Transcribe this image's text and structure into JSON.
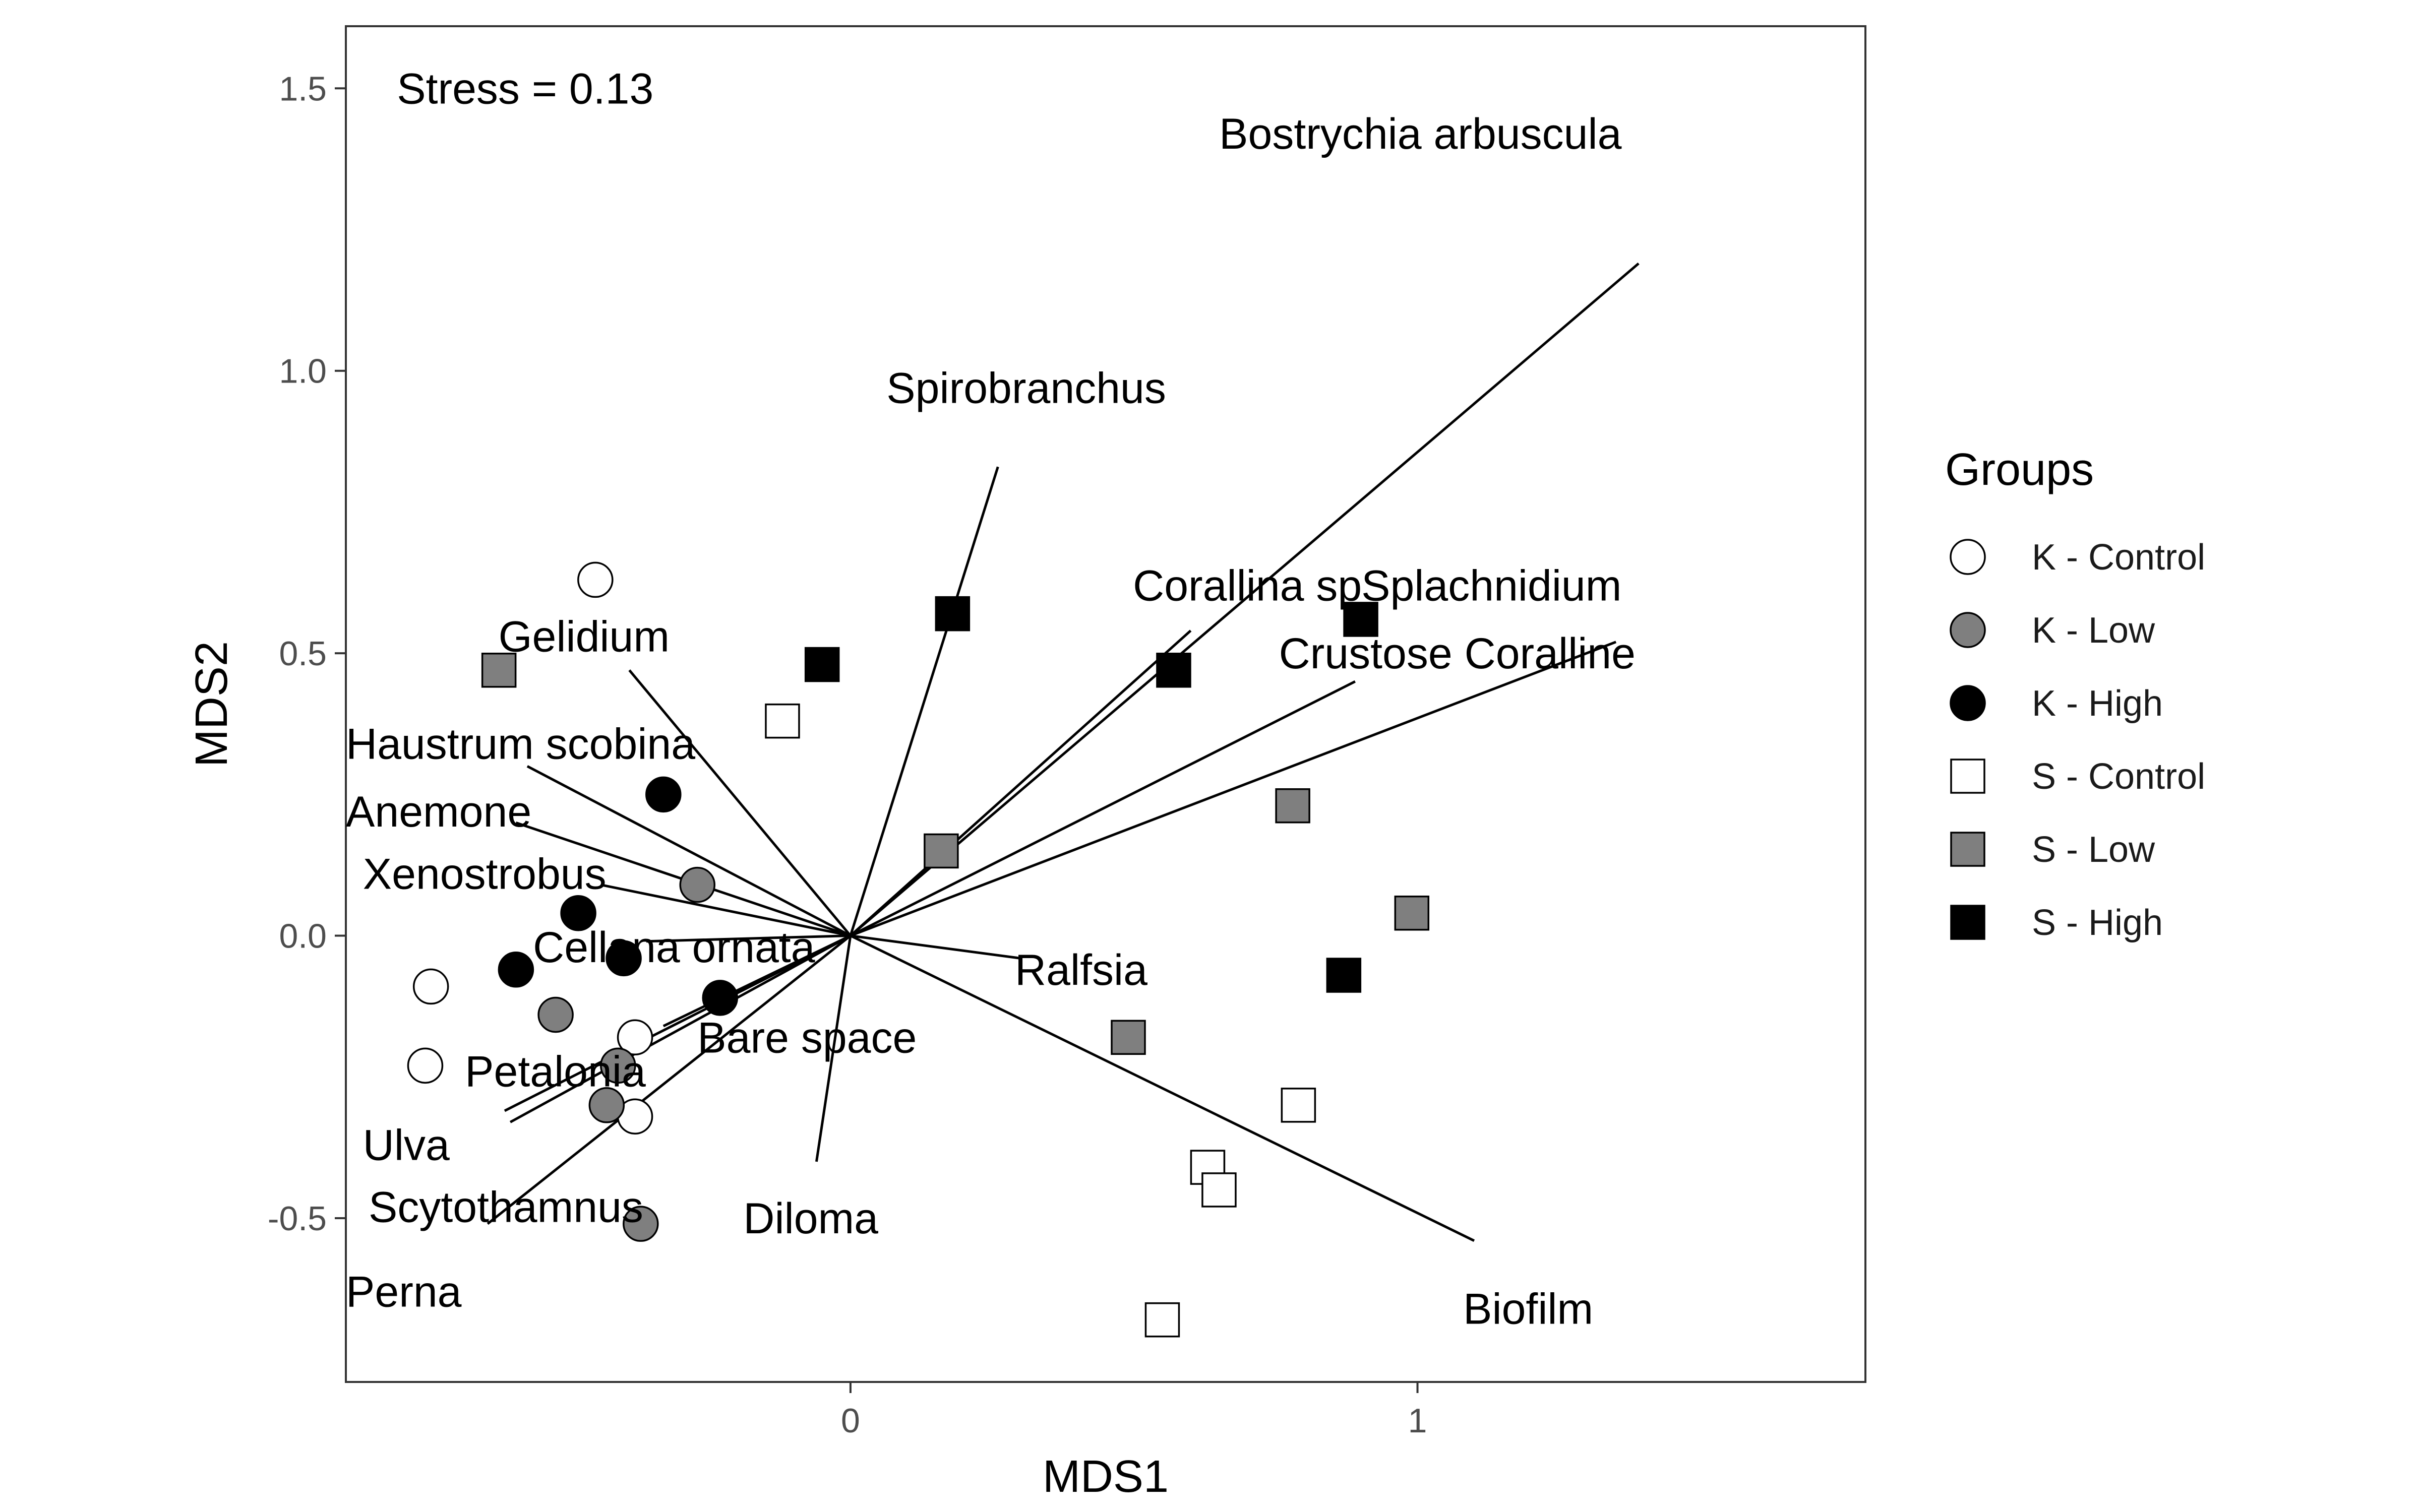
{
  "chart_data": {
    "type": "scatter",
    "xlabel": "MDS1",
    "ylabel": "MDS2",
    "xlim": [
      -0.89,
      1.79
    ],
    "ylim": [
      -0.79,
      1.61
    ],
    "x_ticks": [
      {
        "value": 0,
        "label": "0"
      },
      {
        "value": 1,
        "label": "1"
      }
    ],
    "y_ticks": [
      {
        "value": -0.5,
        "label": "-0.5"
      },
      {
        "value": 0.0,
        "label": "0.0"
      },
      {
        "value": 0.5,
        "label": "0.5"
      },
      {
        "value": 1.0,
        "label": "1.0"
      },
      {
        "value": 1.5,
        "label": "1.5"
      }
    ],
    "grid": false,
    "stress_text": "Stress = 0.13",
    "legend": {
      "title": "Groups",
      "position": "right",
      "entries": [
        {
          "label": "K - Control",
          "shape": "circle",
          "fill": "#ffffff"
        },
        {
          "label": "K - Low",
          "shape": "circle",
          "fill": "#7f7f7f"
        },
        {
          "label": "K - High",
          "shape": "circle",
          "fill": "#000000"
        },
        {
          "label": "S - Control",
          "shape": "square",
          "fill": "#ffffff"
        },
        {
          "label": "S - Low",
          "shape": "square",
          "fill": "#7f7f7f"
        },
        {
          "label": "S - High",
          "shape": "square",
          "fill": "#000000"
        }
      ]
    },
    "series": [
      {
        "name": "K - Control",
        "points": [
          [
            -0.45,
            0.63
          ],
          [
            -0.74,
            -0.09
          ],
          [
            -0.75,
            -0.23
          ],
          [
            -0.38,
            -0.18
          ],
          [
            -0.38,
            -0.32
          ]
        ]
      },
      {
        "name": "K - Low",
        "points": [
          [
            -0.27,
            0.09
          ],
          [
            -0.52,
            -0.14
          ],
          [
            -0.41,
            -0.23
          ],
          [
            -0.43,
            -0.3
          ],
          [
            -0.37,
            -0.51
          ]
        ]
      },
      {
        "name": "K - High",
        "points": [
          [
            -0.33,
            0.25
          ],
          [
            -0.48,
            0.04
          ],
          [
            -0.4,
            -0.04
          ],
          [
            -0.59,
            -0.06
          ],
          [
            -0.23,
            -0.11
          ]
        ]
      },
      {
        "name": "S - Control",
        "points": [
          [
            -0.12,
            0.38
          ],
          [
            0.79,
            -0.3
          ],
          [
            0.63,
            -0.41
          ],
          [
            0.65,
            -0.45
          ],
          [
            0.55,
            -0.68
          ]
        ]
      },
      {
        "name": "S - Low",
        "points": [
          [
            -0.62,
            0.47
          ],
          [
            0.16,
            0.15
          ],
          [
            0.78,
            0.23
          ],
          [
            0.99,
            0.04
          ],
          [
            0.49,
            -0.18
          ]
        ]
      },
      {
        "name": "S - High",
        "points": [
          [
            0.18,
            0.57
          ],
          [
            -0.05,
            0.48
          ],
          [
            0.57,
            0.47
          ],
          [
            0.9,
            0.56
          ],
          [
            0.87,
            -0.07
          ]
        ]
      }
    ],
    "vectors": [
      {
        "name": "Bostrychia arbuscula",
        "end": [
          1.39,
          1.19
        ],
        "label_at": [
          1.36,
          1.42
        ],
        "anchor": "end"
      },
      {
        "name": "Spirobranchus",
        "end": [
          0.26,
          0.83
        ],
        "label_at": [
          0.31,
          0.97
        ],
        "anchor": "middle"
      },
      {
        "name": "Corallina sp",
        "end": [
          0.6,
          0.54
        ],
        "label_at": [
          0.7,
          0.62
        ],
        "anchor": "middle"
      },
      {
        "name": "Splachnidium",
        "end": [
          1.35,
          0.52
        ],
        "label_at": [
          1.36,
          0.62
        ],
        "anchor": "end"
      },
      {
        "name": "Crustose Coralline",
        "end": [
          0.89,
          0.45
        ],
        "label_at": [
          1.07,
          0.5
        ],
        "anchor": "middle"
      },
      {
        "name": "Gelidium",
        "end": [
          -0.39,
          0.47
        ],
        "label_at": [
          -0.47,
          0.53
        ],
        "anchor": "middle"
      },
      {
        "name": "Haustrum scobina",
        "end": [
          -0.57,
          0.3
        ],
        "label_at": [
          -0.89,
          0.34
        ],
        "anchor": "start"
      },
      {
        "name": "Anemone",
        "end": [
          -0.59,
          0.2
        ],
        "label_at": [
          -0.89,
          0.22
        ],
        "anchor": "start"
      },
      {
        "name": "Xenostrobus",
        "end": [
          -0.44,
          0.09
        ],
        "label_at": [
          -0.86,
          0.11
        ],
        "anchor": "start"
      },
      {
        "name": "Cellana ornata",
        "end": [
          -0.36,
          -0.01
        ],
        "label_at": [
          -0.56,
          -0.02
        ],
        "anchor": "start"
      },
      {
        "name": "Ralfsia",
        "end": [
          0.3,
          -0.04
        ],
        "label_at": [
          0.29,
          -0.06
        ],
        "anchor": "start"
      },
      {
        "name": "Bare space",
        "end": [
          -0.33,
          -0.16
        ],
        "label_at": [
          -0.27,
          -0.18
        ],
        "anchor": "start"
      },
      {
        "name": "Petalonia",
        "end": [
          -0.61,
          -0.31
        ],
        "label_at": [
          -0.68,
          -0.24
        ],
        "anchor": "start"
      },
      {
        "name": "Ulva",
        "end": [
          -0.6,
          -0.33
        ],
        "label_at": [
          -0.86,
          -0.37
        ],
        "anchor": "start"
      },
      {
        "name": "Scytothamnus",
        "end": [
          -0.64,
          -0.51
        ],
        "label_at": [
          -0.85,
          -0.48
        ],
        "anchor": "start"
      },
      {
        "name": "Diloma",
        "end": [
          -0.06,
          -0.4
        ],
        "label_at": [
          -0.07,
          -0.5
        ],
        "anchor": "middle"
      },
      {
        "name": "Perna",
        "end": null,
        "label_at": [
          -0.89,
          -0.63
        ],
        "anchor": "start"
      },
      {
        "name": "Biofilm",
        "end": [
          1.1,
          -0.54
        ],
        "label_at": [
          1.31,
          -0.66
        ],
        "anchor": "end"
      }
    ]
  }
}
